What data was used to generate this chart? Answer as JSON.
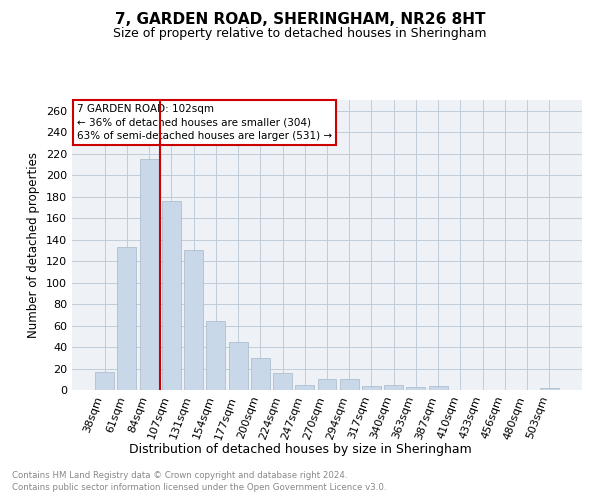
{
  "title": "7, GARDEN ROAD, SHERINGHAM, NR26 8HT",
  "subtitle": "Size of property relative to detached houses in Sheringham",
  "xlabel": "Distribution of detached houses by size in Sheringham",
  "ylabel": "Number of detached properties",
  "bar_color": "#c8d8e8",
  "bar_edge_color": "#a8b8c8",
  "grid_color": "#c0ccd8",
  "background_color": "#eef2f6",
  "vline_color": "#cc0000",
  "categories": [
    "38sqm",
    "61sqm",
    "84sqm",
    "107sqm",
    "131sqm",
    "154sqm",
    "177sqm",
    "200sqm",
    "224sqm",
    "247sqm",
    "270sqm",
    "294sqm",
    "317sqm",
    "340sqm",
    "363sqm",
    "387sqm",
    "410sqm",
    "433sqm",
    "456sqm",
    "480sqm",
    "503sqm"
  ],
  "values": [
    17,
    133,
    215,
    176,
    130,
    64,
    45,
    30,
    16,
    5,
    10,
    10,
    4,
    5,
    3,
    4,
    0,
    0,
    0,
    0,
    2
  ],
  "ylim": [
    0,
    270
  ],
  "yticks": [
    0,
    20,
    40,
    60,
    80,
    100,
    120,
    140,
    160,
    180,
    200,
    220,
    240,
    260
  ],
  "annotation_title": "7 GARDEN ROAD: 102sqm",
  "annotation_line1": "← 36% of detached houses are smaller (304)",
  "annotation_line2": "63% of semi-detached houses are larger (531) →",
  "footnote1": "Contains HM Land Registry data © Crown copyright and database right 2024.",
  "footnote2": "Contains public sector information licensed under the Open Government Licence v3.0.",
  "vline_pos": 2.5
}
